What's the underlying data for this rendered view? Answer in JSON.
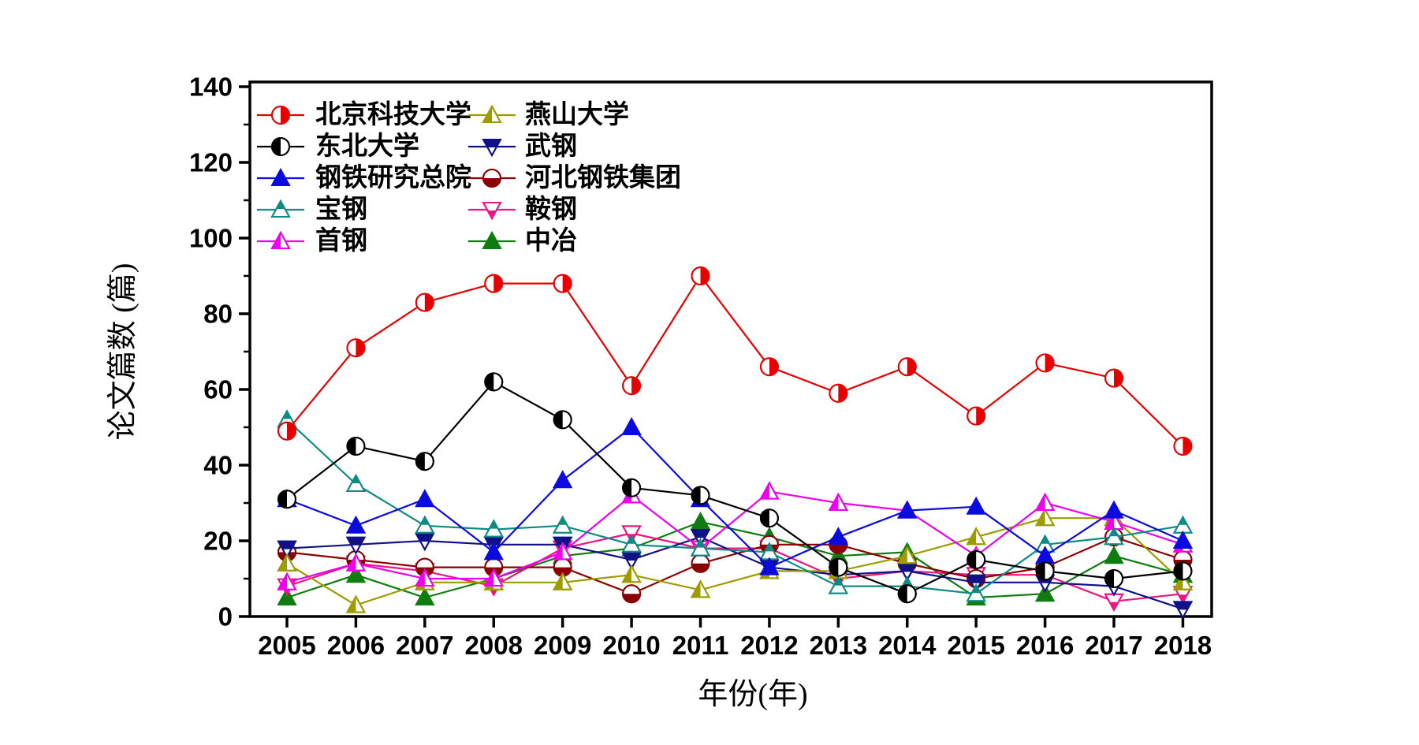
{
  "figure": {
    "background": "#ffffff",
    "x_axis_label": "年份(年)",
    "y_axis_label": "论文篇数 (篇)"
  },
  "chart_data": {
    "type": "line",
    "title": "",
    "xlabel": "年份(年)",
    "ylabel": "论文篇数 (篇)",
    "x": [
      2005,
      2006,
      2007,
      2008,
      2009,
      2010,
      2011,
      2012,
      2013,
      2014,
      2015,
      2016,
      2017,
      2018
    ],
    "ylim": [
      0,
      140
    ],
    "ytick_step": 20,
    "yminor_step": 10,
    "grid": false,
    "legend_position": "top-left-inside",
    "series": [
      {
        "name": "北京科技大学",
        "color": "#e60000",
        "marker": "circle-half-right",
        "values": [
          49,
          71,
          83,
          88,
          88,
          61,
          90,
          66,
          59,
          66,
          53,
          67,
          63,
          45
        ]
      },
      {
        "name": "东北大学",
        "color": "#000000",
        "marker": "circle-half-left",
        "values": [
          31,
          45,
          41,
          62,
          52,
          34,
          32,
          26,
          13,
          6,
          15,
          12,
          10,
          12
        ]
      },
      {
        "name": "钢铁研究总院",
        "color": "#0b0be0",
        "marker": "triangle-solid",
        "values": [
          31,
          24,
          31,
          17,
          36,
          50,
          31,
          13,
          21,
          28,
          29,
          16,
          28,
          20
        ]
      },
      {
        "name": "宝钢",
        "color": "#0e8c84",
        "marker": "triangle-half-top",
        "values": [
          52,
          35,
          24,
          23,
          24,
          19,
          18,
          17,
          8,
          8,
          6,
          19,
          21,
          24
        ]
      },
      {
        "name": "首钢",
        "color": "#ee00ee",
        "marker": "triangle-half-left",
        "values": [
          9,
          14,
          10,
          10,
          17,
          32,
          18,
          33,
          30,
          28,
          16,
          30,
          25,
          19
        ]
      },
      {
        "name": "燕山大学",
        "color": "#9c9c00",
        "marker": "triangle-half-left",
        "values": [
          14,
          3,
          9,
          9,
          9,
          11,
          7,
          12,
          12,
          16,
          21,
          26,
          26,
          9
        ]
      },
      {
        "name": "武钢",
        "color": "#101088",
        "marker": "triangle-down-half-top",
        "values": [
          18,
          19,
          20,
          19,
          19,
          15,
          21,
          13,
          11,
          12,
          9,
          9,
          8,
          2
        ]
      },
      {
        "name": "河北钢铁集团",
        "color": "#8b0000",
        "marker": "circle-half-bottom",
        "values": [
          17,
          15,
          13,
          13,
          13,
          6,
          14,
          19,
          19,
          14,
          10,
          13,
          21,
          15
        ]
      },
      {
        "name": "鞍钢",
        "color": "#f01384",
        "marker": "triangle-down-half-bottom",
        "values": [
          8,
          14,
          12,
          8,
          18,
          22,
          18,
          18,
          10,
          12,
          11,
          11,
          4,
          6
        ]
      },
      {
        "name": "中冶",
        "color": "#0e7c0e",
        "marker": "triangle-solid",
        "values": [
          5,
          11,
          5,
          10,
          16,
          18,
          25,
          21,
          16,
          17,
          5,
          6,
          16,
          11
        ]
      }
    ]
  }
}
